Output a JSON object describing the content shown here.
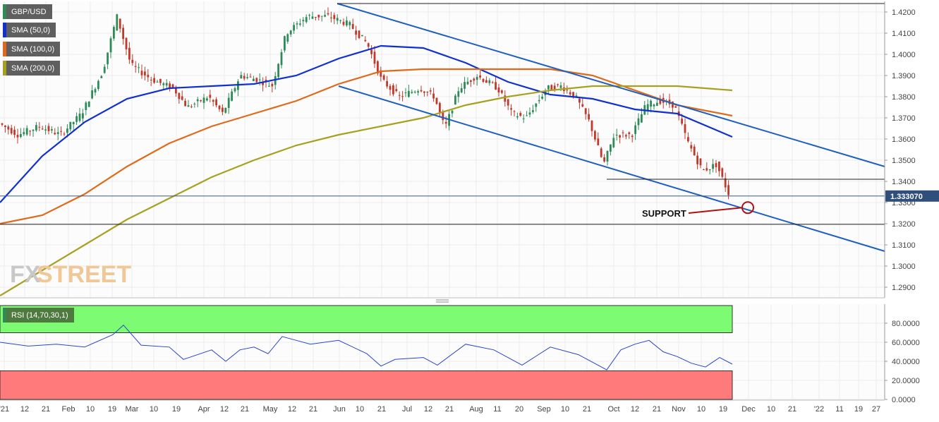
{
  "instrument": "GBP/USD",
  "price_badge": "1.333070",
  "colors": {
    "sma50": "#1030d0",
    "sma100": "#e06a1a",
    "sma200": "#a8a020",
    "up": "#2e8b57",
    "down": "#c0392b",
    "channel": "#1f5fbf",
    "rsi_line": "#2a46c8",
    "rsi_overbought": "#7dfb73",
    "rsi_oversold": "#ff7b7b",
    "annotation": "#b01010",
    "watermark": "#f0c898"
  },
  "legend": {
    "pair": "GBP/USD",
    "sma50": "SMA (50,0)",
    "sma100": "SMA (100,0)",
    "sma200": "SMA (200,0)",
    "rsi": "RSI (14,70,30,1)"
  },
  "annotation_text": "SUPPORT",
  "watermark": {
    "fx": "FX",
    "street": "STREET"
  },
  "chart_data": [
    {
      "type": "line",
      "title": "GBP/USD",
      "ylim": [
        1.285,
        1.425
      ],
      "y_ticks": [
        "1.4200",
        "1.4100",
        "1.4000",
        "1.3900",
        "1.3800",
        "1.3700",
        "1.3600",
        "1.3500",
        "1.3400",
        "1.3300",
        "1.3200",
        "1.3100",
        "1.3000",
        "1.2900"
      ],
      "x_ticks": [
        "'21",
        "12",
        "21",
        "Feb",
        "10",
        "19",
        "Mar",
        "10",
        "19",
        "Apr",
        "12",
        "21",
        "May",
        "12",
        "21",
        "Jun",
        "10",
        "21",
        "Jul",
        "12",
        "21",
        "Aug",
        "11",
        "20",
        "Sep",
        "10",
        "21",
        "Oct",
        "12",
        "21",
        "Nov",
        "10",
        "19",
        "Dec",
        "10",
        "21",
        "'22",
        "11",
        "19",
        "27"
      ],
      "last_price": 1.33307,
      "series": [
        {
          "name": "SMA (50,0)",
          "x": [
            0,
            60,
            120,
            180,
            240,
            300,
            360,
            420,
            480,
            540,
            600,
            660,
            720,
            780,
            840,
            900,
            960,
            1038
          ],
          "values": [
            1.33,
            1.352,
            1.368,
            1.379,
            1.384,
            1.385,
            1.386,
            1.39,
            1.398,
            1.404,
            1.403,
            1.396,
            1.387,
            1.381,
            1.379,
            1.374,
            1.372,
            1.361
          ]
        },
        {
          "name": "SMA (100,0)",
          "x": [
            0,
            60,
            120,
            180,
            240,
            300,
            360,
            420,
            480,
            540,
            600,
            660,
            720,
            780,
            840,
            900,
            960,
            1038
          ],
          "values": [
            1.32,
            1.324,
            1.334,
            1.347,
            1.358,
            1.366,
            1.372,
            1.378,
            1.386,
            1.392,
            1.393,
            1.393,
            1.393,
            1.393,
            1.39,
            1.383,
            1.376,
            1.371
          ]
        },
        {
          "name": "SMA (200,0)",
          "x": [
            0,
            60,
            120,
            180,
            240,
            300,
            360,
            420,
            480,
            540,
            600,
            660,
            720,
            780,
            840,
            900,
            960,
            1038
          ],
          "values": [
            1.286,
            1.298,
            1.31,
            1.322,
            1.332,
            1.342,
            1.35,
            1.357,
            1.362,
            1.366,
            1.37,
            1.376,
            1.38,
            1.383,
            1.385,
            1.385,
            1.385,
            1.383
          ]
        }
      ],
      "reference_lines": [
        1.341,
        1.3197
      ],
      "channel": {
        "upper": [
          [
            478,
            1.424
          ],
          [
            1254,
            1.347
          ]
        ],
        "lower": [
          [
            480,
            1.385
          ],
          [
            1254,
            1.307
          ]
        ]
      },
      "annotation": {
        "label": "SUPPORT",
        "target_y": 1.3276
      }
    },
    {
      "type": "line",
      "title": "RSI (14,70,30,1)",
      "ylim": [
        0,
        100
      ],
      "y_ticks": [
        "80.0000",
        "60.0000",
        "40.0000",
        "20.0000",
        "0.0000"
      ],
      "overbought": 70,
      "oversold": 30,
      "series": [
        {
          "name": "RSI (14,70,30,1)",
          "x": [
            0,
            40,
            80,
            120,
            160,
            175,
            200,
            240,
            260,
            300,
            320,
            340,
            360,
            380,
            400,
            420,
            440,
            480,
            520,
            540,
            560,
            600,
            620,
            660,
            700,
            740,
            780,
            820,
            860,
            880,
            900,
            920,
            940,
            960,
            980,
            1000,
            1020,
            1038
          ],
          "values": [
            60,
            56,
            58,
            55,
            68,
            78,
            57,
            55,
            42,
            52,
            40,
            52,
            55,
            48,
            66,
            62,
            58,
            62,
            48,
            35,
            42,
            44,
            36,
            58,
            52,
            36,
            55,
            47,
            31,
            52,
            58,
            62,
            50,
            45,
            38,
            34,
            44,
            37
          ]
        }
      ]
    }
  ]
}
